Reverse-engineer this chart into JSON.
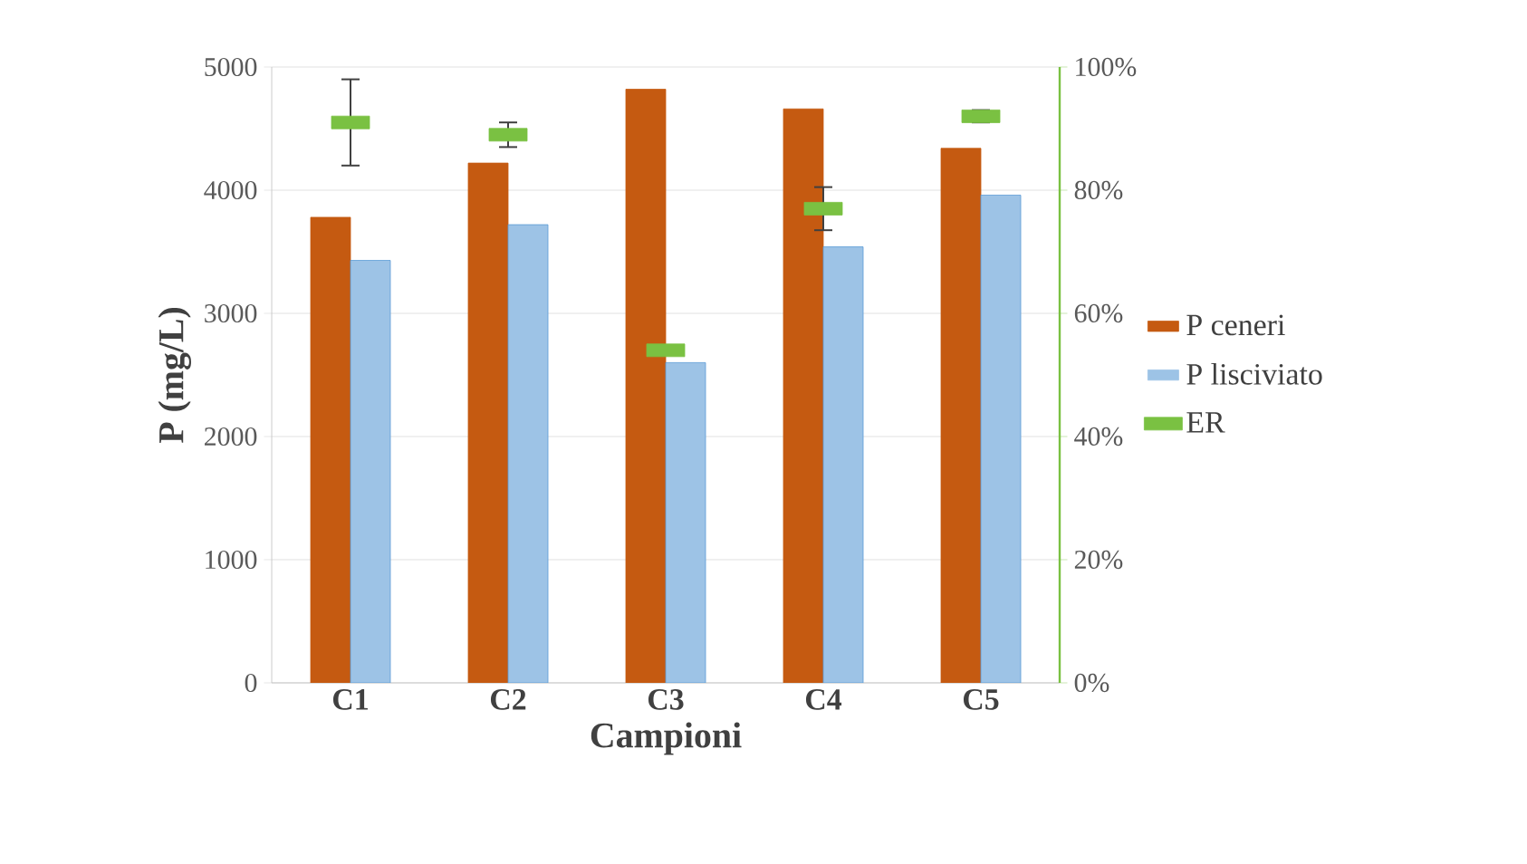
{
  "chart_data": {
    "type": "bar",
    "xlabel": "Campioni",
    "ylabel": "P  (mg/L)",
    "categories": [
      "C1",
      "C2",
      "C3",
      "C4",
      "C5"
    ],
    "series": [
      {
        "name": "P ceneri",
        "color": "#c55a11",
        "values": [
          3780,
          4220,
          4820,
          4660,
          4340
        ]
      },
      {
        "name": "P lisciviato",
        "color": "#9dc3e6",
        "values": [
          3430,
          3720,
          2600,
          3540,
          3960
        ]
      },
      {
        "name": "ER",
        "type": "scatter",
        "axis": "y2",
        "color": "#7ac142",
        "values": [
          91,
          89,
          54,
          77,
          92
        ],
        "errors": [
          7,
          2,
          null,
          3.5,
          1
        ]
      }
    ],
    "ylim": [
      0,
      5000
    ],
    "yticks": [
      0,
      1000,
      2000,
      3000,
      4000,
      5000
    ],
    "y2lim": [
      0,
      100
    ],
    "y2ticks": [
      {
        "value": 0,
        "label": "0%"
      },
      {
        "value": 20,
        "label": "20%"
      },
      {
        "value": 40,
        "label": "40%"
      },
      {
        "value": 60,
        "label": "60%"
      },
      {
        "value": 80,
        "label": "80%"
      },
      {
        "value": 100,
        "label": "100%"
      }
    ],
    "grid": "y",
    "legend": "right"
  }
}
